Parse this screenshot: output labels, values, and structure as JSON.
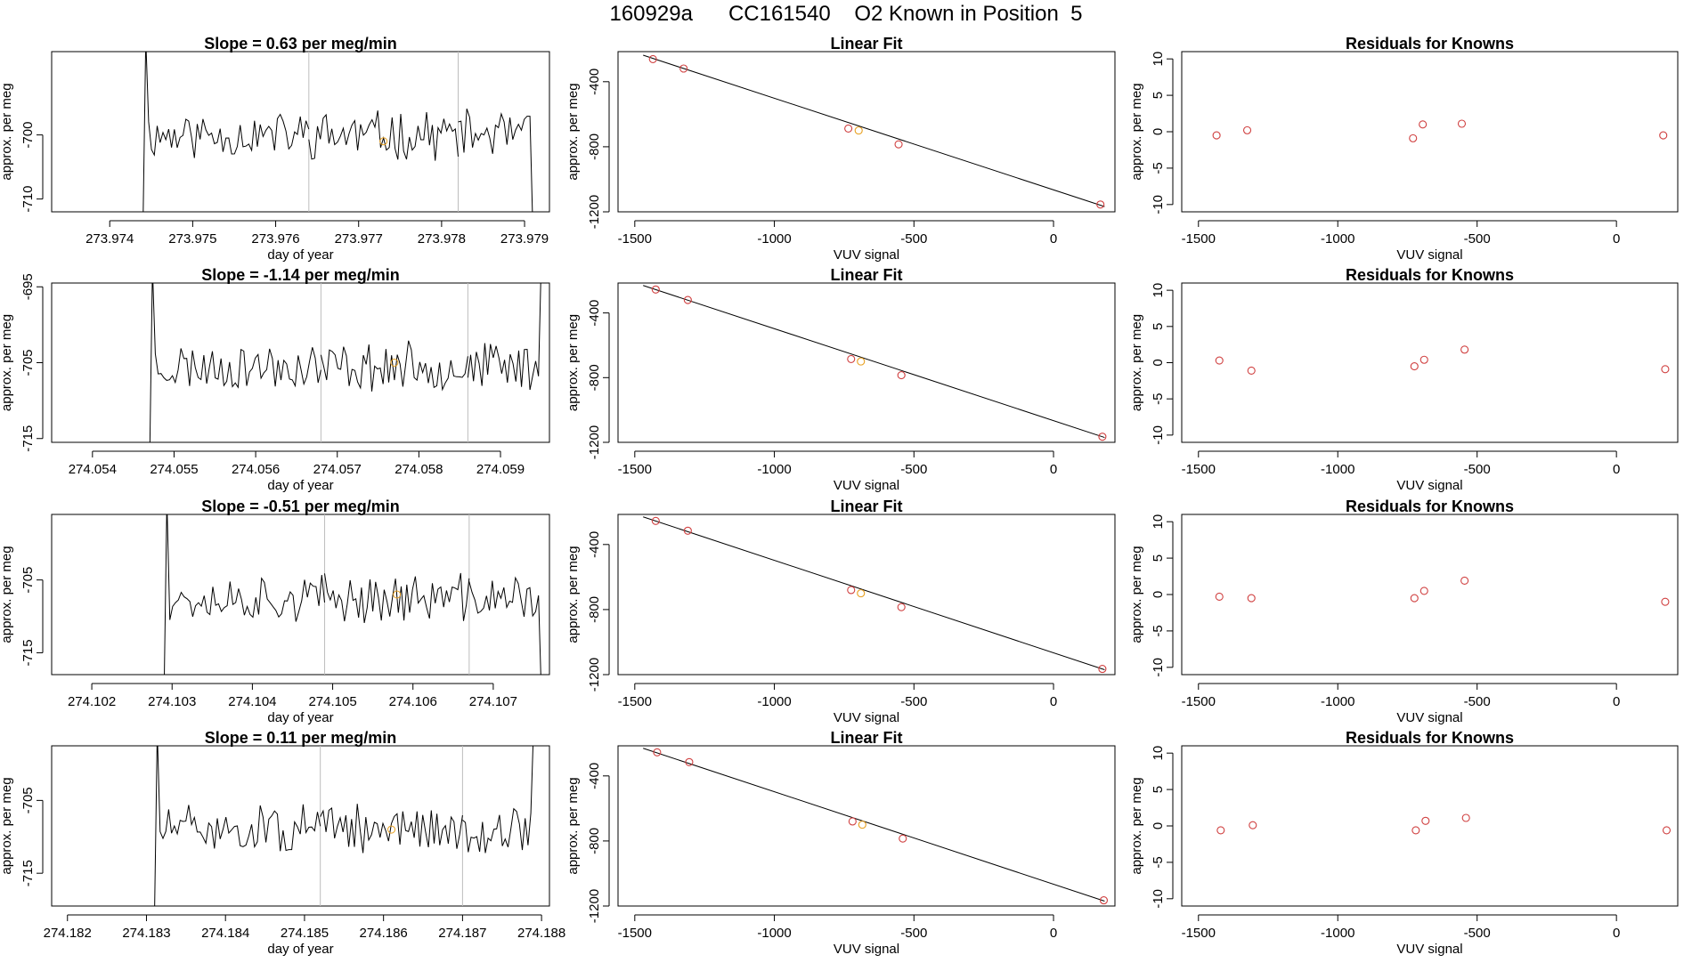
{
  "title": {
    "run_id": "160929a",
    "tank_id": "CC161540",
    "description": "O2 Known in Position  5"
  },
  "colors": {
    "trace": "#000000",
    "fit_point": "#d04040",
    "highlight_point": "#e8a020",
    "marker_line": "#bdbdbd"
  },
  "chart_data": [
    {
      "type": "line",
      "title": "Slope =  0.63  per meg/min",
      "xlabel": "day of year",
      "ylabel": "approx. per meg",
      "xlim": [
        273.9733,
        273.9793
      ],
      "ylim": [
        -712,
        -687
      ],
      "xticks": [
        273.974,
        273.975,
        273.976,
        273.977,
        273.978,
        273.979
      ],
      "xtick_labels": [
        "273.974",
        "273.975",
        "273.976",
        "273.977",
        "273.978",
        "273.979"
      ],
      "yticks": [
        -710,
        -700
      ],
      "ytick_labels": [
        "-710",
        "-700"
      ],
      "segments": [
        [
          273.9744,
          273.9764
        ],
        [
          273.9764,
          273.9782
        ],
        [
          273.9782,
          273.9791
        ]
      ],
      "markers": [
        273.9764,
        273.9782
      ],
      "highlight": {
        "x": 273.9773,
        "y": -701
      },
      "seed": 11
    },
    {
      "type": "scatter",
      "title": "Linear Fit",
      "xlabel": "VUV signal",
      "ylabel": "approx. per meg",
      "xlim": [
        -1560,
        220
      ],
      "ylim": [
        -1200,
        -215
      ],
      "xticks": [
        -1500,
        -1000,
        -500,
        0
      ],
      "xtick_labels": [
        "-1500",
        "-1000",
        "-500",
        "0"
      ],
      "yticks": [
        -1200,
        -800,
        -400
      ],
      "ytick_labels": [
        "-1200",
        "-800",
        "-400"
      ],
      "points": [
        [
          -1435,
          -261
        ],
        [
          -1325,
          -319
        ],
        [
          -735,
          -688
        ],
        [
          -698,
          -700
        ],
        [
          -555,
          -785
        ],
        [
          168,
          -1155
        ]
      ],
      "highlight_index": 3,
      "fit_line": [
        [
          -1470,
          -237
        ],
        [
          183,
          -1168
        ]
      ]
    },
    {
      "type": "scatter",
      "title": "Residuals for Knowns",
      "xlabel": "VUV signal",
      "ylabel": "approx. per meg",
      "xlim": [
        -1560,
        220
      ],
      "ylim": [
        -11,
        11
      ],
      "xticks": [
        -1500,
        -1000,
        -500,
        0
      ],
      "xtick_labels": [
        "-1500",
        "-1000",
        "-500",
        "0"
      ],
      "yticks": [
        -10,
        -5,
        0,
        5,
        10
      ],
      "ytick_labels": [
        "-10",
        "-5",
        "0",
        "5",
        "10"
      ],
      "points": [
        [
          -1435,
          -0.5
        ],
        [
          -1325,
          0.2
        ],
        [
          -730,
          -0.9
        ],
        [
          -695,
          1.0
        ],
        [
          -555,
          1.1
        ],
        [
          168,
          -0.5
        ]
      ]
    },
    {
      "type": "line",
      "title": "Slope =  -1.14  per meg/min",
      "xlabel": "day of year",
      "ylabel": "approx. per meg",
      "xlim": [
        274.0535,
        274.0596
      ],
      "ylim": [
        -715.5,
        -694.5
      ],
      "xticks": [
        274.054,
        274.055,
        274.056,
        274.057,
        274.058,
        274.059
      ],
      "xtick_labels": [
        "274.054",
        "274.055",
        "274.056",
        "274.057",
        "274.058",
        "274.059"
      ],
      "yticks": [
        -715,
        -705,
        -695
      ],
      "ytick_labels": [
        "-715",
        "-705",
        "-695"
      ],
      "segments": [
        [
          274.0547,
          274.0568
        ],
        [
          274.0568,
          274.0586
        ],
        [
          274.0586,
          274.0595
        ]
      ],
      "markers": [
        274.0568,
        274.0586
      ],
      "highlight": {
        "x": 274.0577,
        "y": -705
      },
      "seed": 23
    },
    {
      "type": "scatter",
      "title": "Linear Fit",
      "xlabel": "VUV signal",
      "ylabel": "approx. per meg",
      "xlim": [
        -1560,
        220
      ],
      "ylim": [
        -1200,
        -215
      ],
      "xticks": [
        -1500,
        -1000,
        -500,
        0
      ],
      "xtick_labels": [
        "-1500",
        "-1000",
        "-500",
        "0"
      ],
      "yticks": [
        -1200,
        -800,
        -400
      ],
      "ytick_labels": [
        "-1200",
        "-800",
        "-400"
      ],
      "points": [
        [
          -1425,
          -255
        ],
        [
          -1310,
          -320
        ],
        [
          -725,
          -685
        ],
        [
          -690,
          -700
        ],
        [
          -545,
          -785
        ],
        [
          175,
          -1165
        ]
      ],
      "highlight_index": 3,
      "fit_line": [
        [
          -1470,
          -230
        ],
        [
          183,
          -1170
        ]
      ]
    },
    {
      "type": "scatter",
      "title": "Residuals for Knowns",
      "xlabel": "VUV signal",
      "ylabel": "approx. per meg",
      "xlim": [
        -1560,
        220
      ],
      "ylim": [
        -11,
        11
      ],
      "xticks": [
        -1500,
        -1000,
        -500,
        0
      ],
      "xtick_labels": [
        "-1500",
        "-1000",
        "-500",
        "0"
      ],
      "yticks": [
        -10,
        -5,
        0,
        5,
        10
      ],
      "ytick_labels": [
        "-10",
        "-5",
        "0",
        "5",
        "10"
      ],
      "points": [
        [
          -1425,
          0.3
        ],
        [
          -1310,
          -1.1
        ],
        [
          -725,
          -0.5
        ],
        [
          -690,
          0.4
        ],
        [
          -545,
          1.8
        ],
        [
          175,
          -0.9
        ]
      ]
    },
    {
      "type": "line",
      "title": "Slope =  -0.51  per meg/min",
      "xlabel": "day of year",
      "ylabel": "approx. per meg",
      "xlim": [
        274.1015,
        274.1077
      ],
      "ylim": [
        -718,
        -696
      ],
      "xticks": [
        274.102,
        274.103,
        274.104,
        274.105,
        274.106,
        274.107
      ],
      "xtick_labels": [
        "274.102",
        "274.103",
        "274.104",
        "274.105",
        "274.106",
        "274.107"
      ],
      "yticks": [
        -715,
        -705
      ],
      "ytick_labels": [
        "-715",
        "-705"
      ],
      "segments": [
        [
          274.1029,
          274.1049
        ],
        [
          274.1049,
          274.1067
        ],
        [
          274.1067,
          274.1076
        ]
      ],
      "markers": [
        274.1049,
        274.1067
      ],
      "highlight": {
        "x": 274.1058,
        "y": -707
      },
      "seed": 37
    },
    {
      "type": "scatter",
      "title": "Linear Fit",
      "xlabel": "VUV signal",
      "ylabel": "approx. per meg",
      "xlim": [
        -1560,
        220
      ],
      "ylim": [
        -1200,
        -215
      ],
      "xticks": [
        -1500,
        -1000,
        -500,
        0
      ],
      "xtick_labels": [
        "-1500",
        "-1000",
        "-500",
        "0"
      ],
      "yticks": [
        -1200,
        -800,
        -400
      ],
      "ytick_labels": [
        "-1200",
        "-800",
        "-400"
      ],
      "points": [
        [
          -1425,
          -255
        ],
        [
          -1310,
          -315
        ],
        [
          -725,
          -680
        ],
        [
          -690,
          -700
        ],
        [
          -545,
          -785
        ],
        [
          175,
          -1165
        ]
      ],
      "highlight_index": 3,
      "fit_line": [
        [
          -1470,
          -230
        ],
        [
          183,
          -1170
        ]
      ]
    },
    {
      "type": "scatter",
      "title": "Residuals for Knowns",
      "xlabel": "VUV signal",
      "ylabel": "approx. per meg",
      "xlim": [
        -1560,
        220
      ],
      "ylim": [
        -11,
        11
      ],
      "xticks": [
        -1500,
        -1000,
        -500,
        0
      ],
      "xtick_labels": [
        "-1500",
        "-1000",
        "-500",
        "0"
      ],
      "yticks": [
        -10,
        -5,
        0,
        5,
        10
      ],
      "ytick_labels": [
        "-10",
        "-5",
        "0",
        "5",
        "10"
      ],
      "points": [
        [
          -1425,
          -0.3
        ],
        [
          -1310,
          -0.5
        ],
        [
          -725,
          -0.5
        ],
        [
          -690,
          0.5
        ],
        [
          -545,
          1.9
        ],
        [
          175,
          -1.0
        ]
      ]
    },
    {
      "type": "line",
      "title": "Slope =  0.11  per meg/min",
      "xlabel": "day of year",
      "ylabel": "approx. per meg",
      "xlim": [
        274.1818,
        274.1881
      ],
      "ylim": [
        -719.5,
        -697.5
      ],
      "xticks": [
        274.182,
        274.183,
        274.184,
        274.185,
        274.186,
        274.187,
        274.188
      ],
      "xtick_labels": [
        "274.182",
        "274.183",
        "274.184",
        "274.185",
        "274.186",
        "274.187",
        "274.188"
      ],
      "yticks": [
        -715,
        -705
      ],
      "ytick_labels": [
        "-715",
        "-705"
      ],
      "segments": [
        [
          274.1831,
          274.1852
        ],
        [
          274.1852,
          274.187
        ],
        [
          274.187,
          274.1879
        ]
      ],
      "markers": [
        274.1852,
        274.187
      ],
      "highlight": {
        "x": 274.1861,
        "y": -709
      },
      "seed": 51
    },
    {
      "type": "scatter",
      "title": "Linear Fit",
      "xlabel": "VUV signal",
      "ylabel": "approx. per meg",
      "xlim": [
        -1560,
        220
      ],
      "ylim": [
        -1200,
        -215
      ],
      "xticks": [
        -1500,
        -1000,
        -500,
        0
      ],
      "xtick_labels": [
        "-1500",
        "-1000",
        "-500",
        "0"
      ],
      "yticks": [
        -1200,
        -800,
        -400
      ],
      "ytick_labels": [
        "-1200",
        "-800",
        "-400"
      ],
      "points": [
        [
          -1420,
          -255
        ],
        [
          -1305,
          -315
        ],
        [
          -720,
          -680
        ],
        [
          -685,
          -700
        ],
        [
          -540,
          -785
        ],
        [
          180,
          -1165
        ]
      ],
      "highlight_index": 3,
      "fit_line": [
        [
          -1470,
          -230
        ],
        [
          183,
          -1170
        ]
      ]
    },
    {
      "type": "scatter",
      "title": "Residuals for Knowns",
      "xlabel": "VUV signal",
      "ylabel": "approx. per meg",
      "xlim": [
        -1560,
        220
      ],
      "ylim": [
        -11,
        11
      ],
      "xticks": [
        -1500,
        -1000,
        -500,
        0
      ],
      "xtick_labels": [
        "-1500",
        "-1000",
        "-500",
        "0"
      ],
      "yticks": [
        -10,
        -5,
        0,
        5,
        10
      ],
      "ytick_labels": [
        "-10",
        "-5",
        "0",
        "5",
        "10"
      ],
      "points": [
        [
          -1420,
          -0.6
        ],
        [
          -1305,
          0.1
        ],
        [
          -720,
          -0.6
        ],
        [
          -685,
          0.7
        ],
        [
          -540,
          1.1
        ],
        [
          180,
          -0.6
        ]
      ]
    }
  ]
}
